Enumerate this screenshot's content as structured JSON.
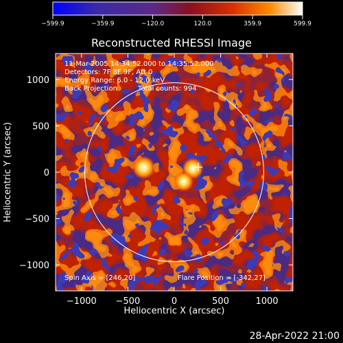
{
  "chart_data": {
    "type": "heatmap",
    "title": "Reconstructed RHESSI Image",
    "xlabel": "Heliocentric X (arcsec)",
    "ylabel": "Heliocentric Y (arcsec)",
    "xlim": [
      -1280,
      1280
    ],
    "ylim": [
      -1280,
      1280
    ],
    "xticks": [
      -1000,
      -500,
      0,
      500,
      1000
    ],
    "yticks": [
      -1000,
      -500,
      0,
      500,
      1000
    ],
    "xtick_labels": [
      "−1000",
      "−500",
      "0",
      "500",
      "1000"
    ],
    "ytick_labels": [
      "−1000",
      "−500",
      "0",
      "500",
      "1000"
    ],
    "colorbar": {
      "min": -599.9,
      "max": 599.9,
      "ticks": [
        -599.9,
        -359.9,
        -120.0,
        120.0,
        359.9,
        599.9
      ],
      "tick_labels": [
        "−599.9",
        "−359.9",
        "−120.0",
        "120.0",
        "359.9",
        "599.9"
      ],
      "colors": [
        "#0000ff",
        "#3a2aa8",
        "#5a2a8a",
        "#8a1020",
        "#d83000",
        "#ff8a00",
        "#ffffff"
      ]
    },
    "annotations": {
      "time_range": "11-Mar-2005 14:34:52.000 to 14:35:52.000",
      "detectors": "Detectors: 7F 8F 9F, Att 0",
      "energy": "Energy Range: 6.0 - 12.0 keV",
      "method": "Back Projection",
      "total_counts": "Total counts: 994",
      "spin_axis": "Spin Axis = [246,20]",
      "flare_position": "Flare Position = [-342,27]"
    },
    "solar_limb_radius_arcsec": 965,
    "solar_limb_center": [
      0,
      0
    ],
    "marker_position": [
      260,
      55
    ],
    "sources": [
      {
        "x": -330,
        "y": 50,
        "value": 560
      },
      {
        "x": 200,
        "y": 40,
        "value": 480
      },
      {
        "x": 100,
        "y": -100,
        "value": 420
      }
    ]
  },
  "footer_date": "28-Apr-2022 21:00"
}
